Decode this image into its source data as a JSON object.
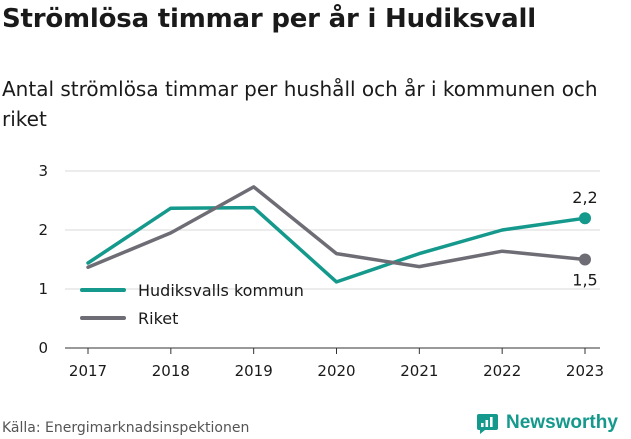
{
  "title": "Strömlösa timmar per år i Hudiksvall",
  "subtitle": "Antal strömlösa timmar per hushåll och år i kommunen och riket",
  "source": "Källa: Energimarknadsinspektionen",
  "brand": "Newsworthy",
  "colors": {
    "accent": "#14998c",
    "series2": "#6e6d75",
    "grid": "#d9d9d9"
  },
  "chart_data": {
    "type": "line",
    "x": [
      "2017",
      "2018",
      "2019",
      "2020",
      "2021",
      "2022",
      "2023"
    ],
    "ylim": [
      0,
      3
    ],
    "yticks": [
      "0",
      "1",
      "2",
      "3"
    ],
    "grid": true,
    "legend": "bottom-left",
    "series": [
      {
        "name": "Hudiksvalls kommun",
        "color": "#14998c",
        "values": [
          1.44,
          2.37,
          2.38,
          1.12,
          1.6,
          2.0,
          2.2
        ],
        "end_label": "2,2"
      },
      {
        "name": "Riket",
        "color": "#6e6d75",
        "values": [
          1.37,
          1.95,
          2.73,
          1.6,
          1.38,
          1.64,
          1.5
        ],
        "end_label": "1,5"
      }
    ]
  }
}
